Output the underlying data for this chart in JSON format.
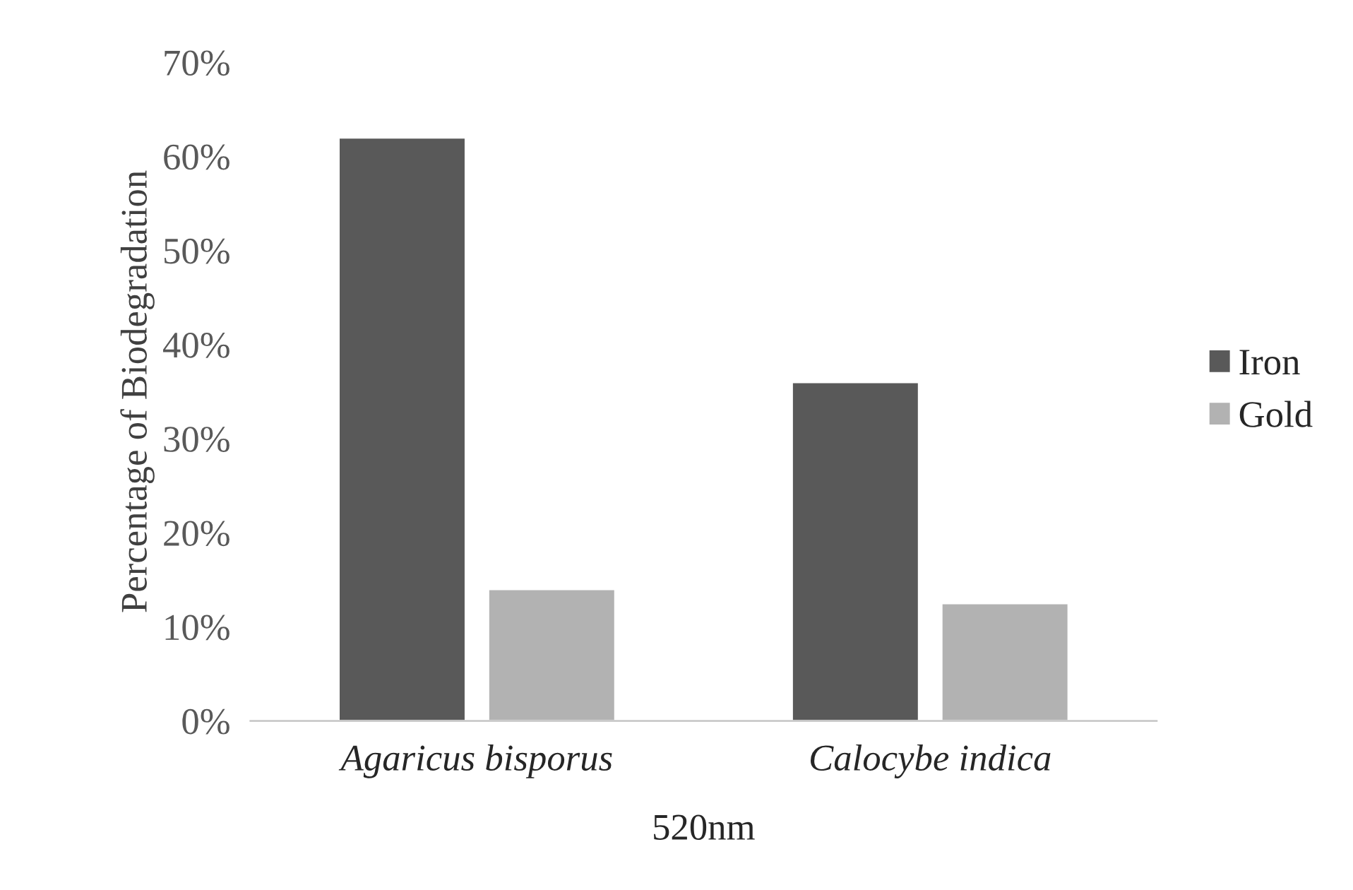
{
  "chart_data": {
    "type": "bar",
    "xlabel": "520nm",
    "ylabel": "Percentage of Biodegradation",
    "categories": [
      "Agaricus bisporus",
      "Calocybe indica"
    ],
    "series": [
      {
        "name": "Iron",
        "color": "#595959",
        "values": [
          62,
          36
        ]
      },
      {
        "name": "Gold",
        "color": "#b2b2b2",
        "values": [
          14,
          12.5
        ]
      }
    ],
    "ylim": [
      0,
      70
    ],
    "yticks": [
      {
        "value": 0,
        "label": "0%"
      },
      {
        "value": 10,
        "label": "10%"
      },
      {
        "value": 20,
        "label": "20%"
      },
      {
        "value": 30,
        "label": "30%"
      },
      {
        "value": 40,
        "label": "40%"
      },
      {
        "value": 50,
        "label": "50%"
      },
      {
        "value": 60,
        "label": "60%"
      },
      {
        "value": 70,
        "label": "70%"
      }
    ],
    "grid": false,
    "legend": "right"
  }
}
